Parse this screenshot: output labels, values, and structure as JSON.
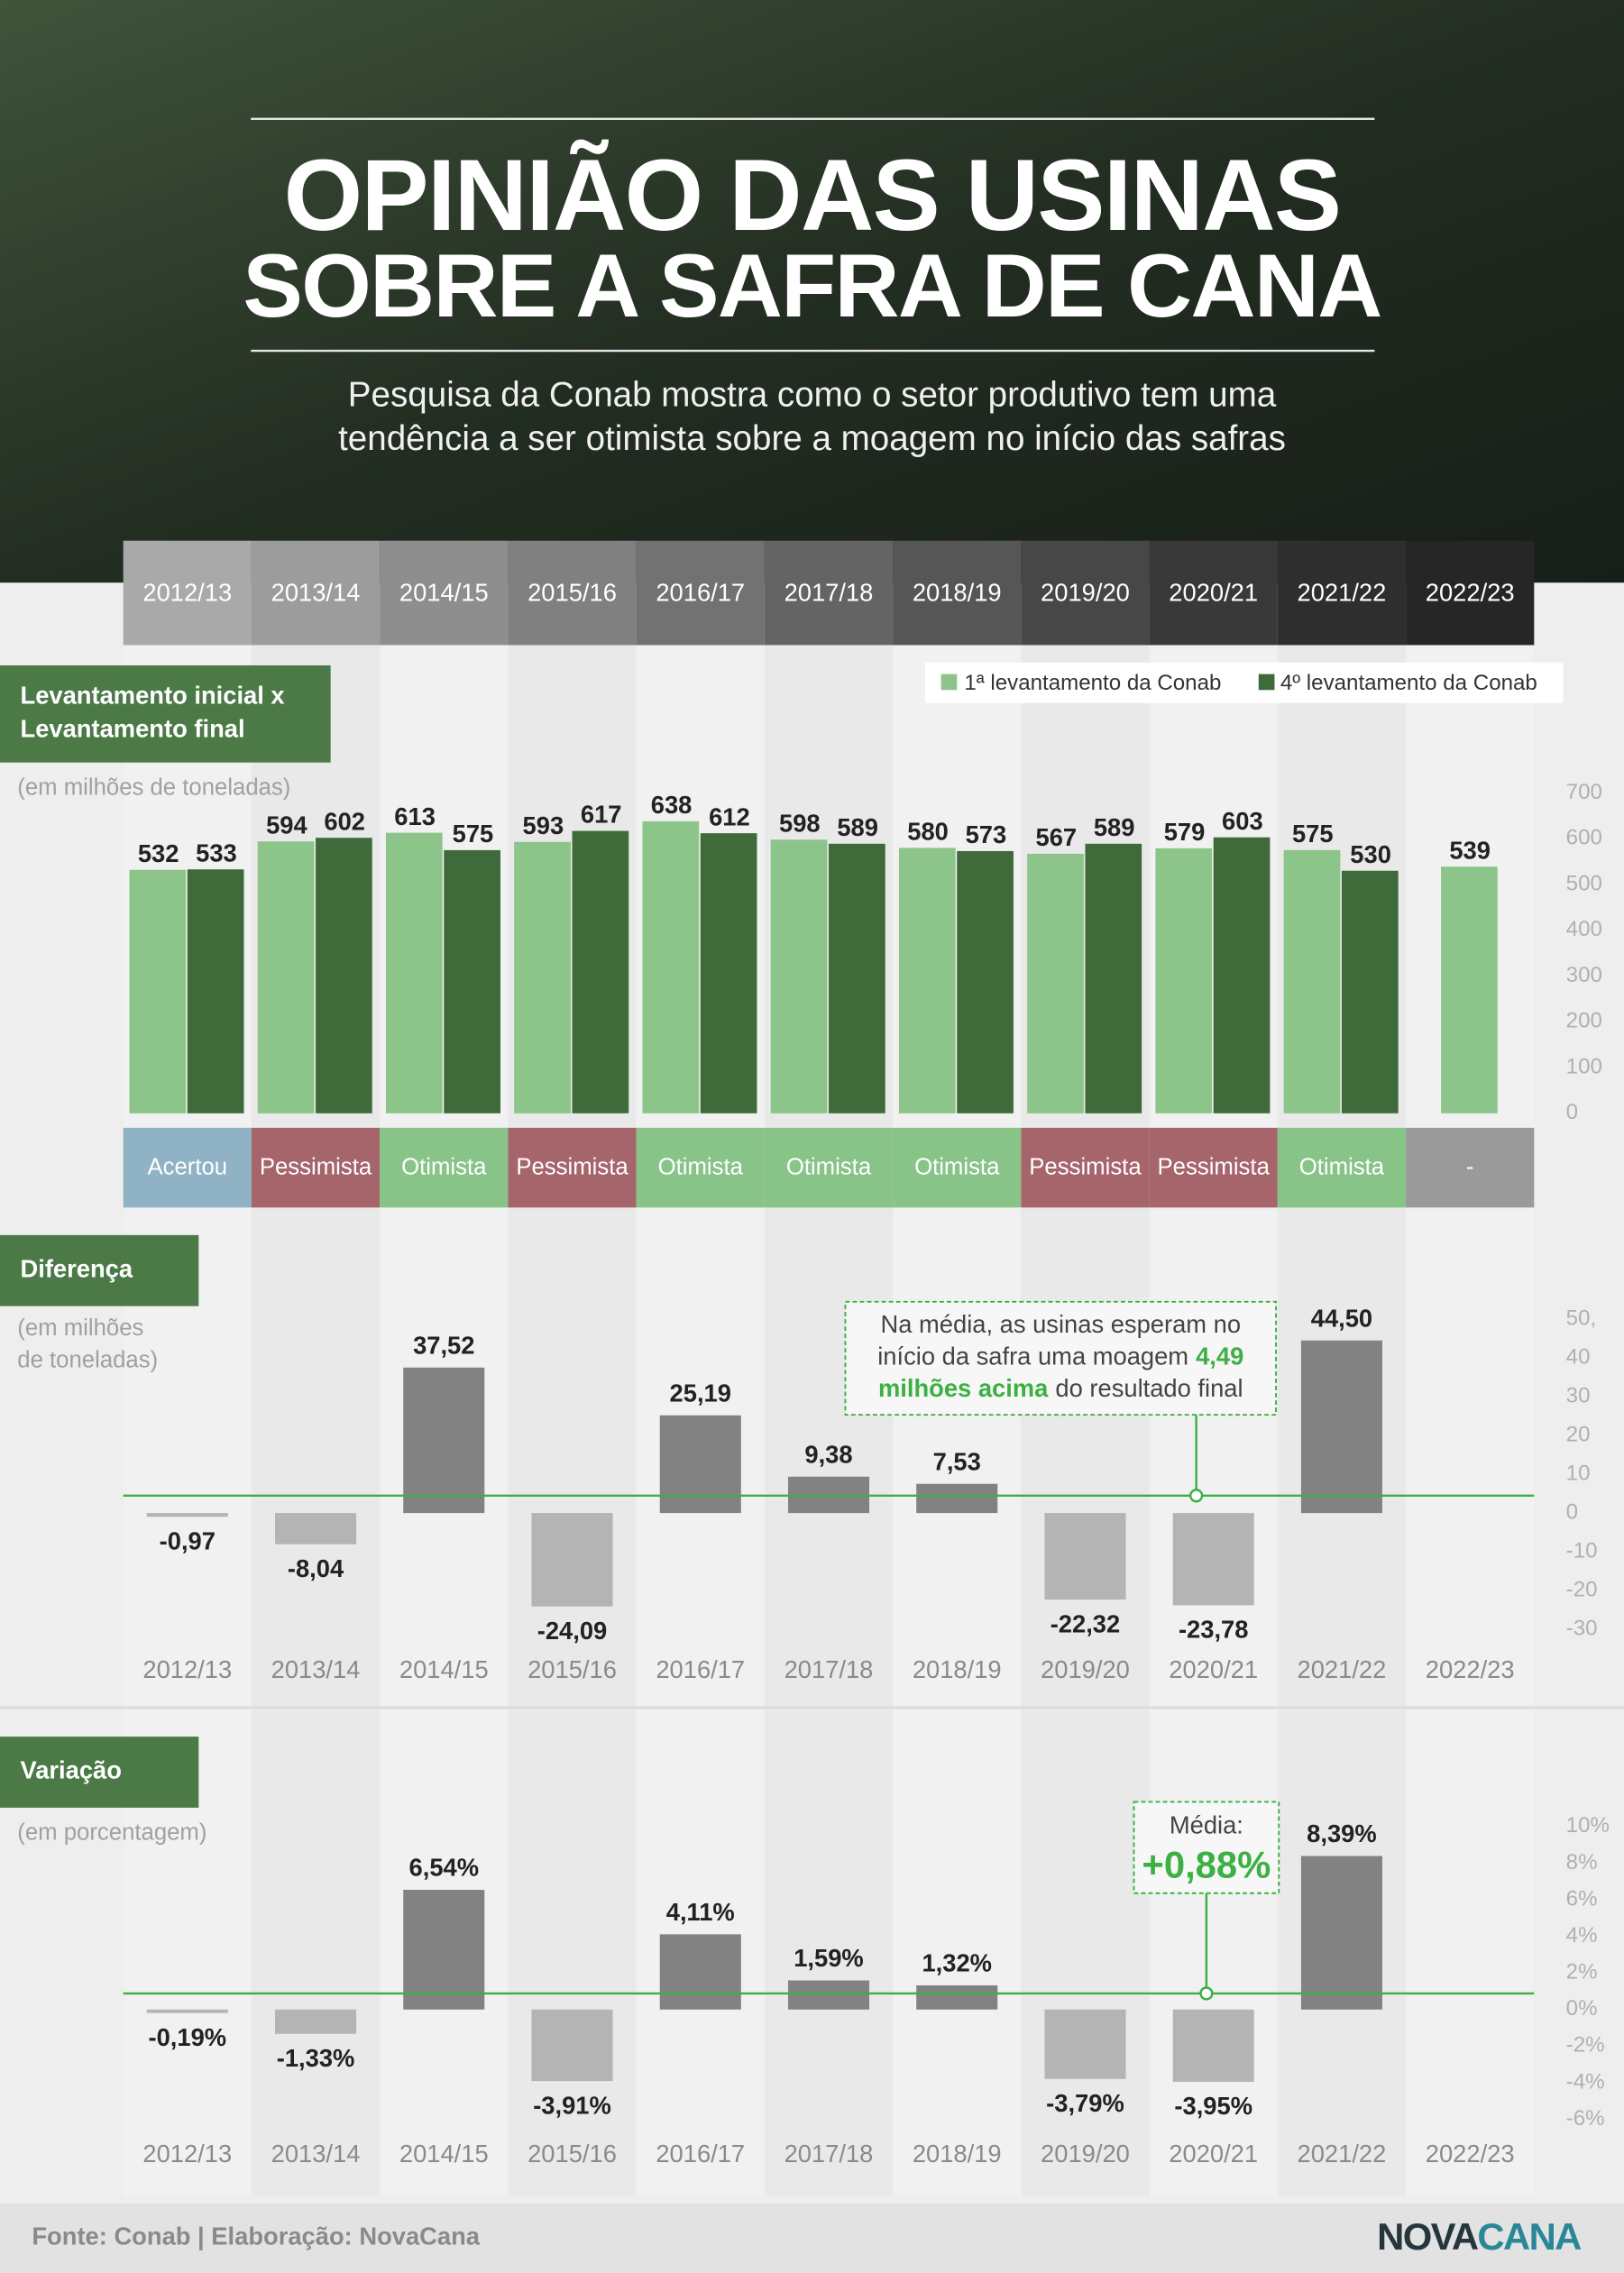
{
  "header": {
    "title_line1": "OPINIÃO DAS USINAS",
    "title_line2": "SOBRE A SAFRA DE CANA",
    "subtitle_line1": "Pesquisa da Conab mostra como o setor produtivo tem uma",
    "subtitle_line2": "tendência a ser otimista sobre a moagem no início das safras"
  },
  "chart_data": [
    {
      "type": "bar",
      "title": [
        "Levantamento inicial x",
        "Levantamento final"
      ],
      "subtitle": [
        "(em milhões de toneladas)"
      ],
      "categories": [
        "2012/13",
        "2013/14",
        "2014/15",
        "2015/16",
        "2016/17",
        "2017/18",
        "2018/19",
        "2019/20",
        "2020/21",
        "2021/22",
        "2022/23"
      ],
      "category_colors": [
        "#a9a9a9",
        "#9c9c9c",
        "#8e8e8e",
        "#808080",
        "#727272",
        "#646464",
        "#565656",
        "#474747",
        "#393939",
        "#2e2e2e",
        "#262626"
      ],
      "series": [
        {
          "name": "1ª levantamento da Conab",
          "color": "#8dc48a",
          "values": [
            532,
            594,
            613,
            593,
            638,
            598,
            580,
            567,
            579,
            575,
            539
          ]
        },
        {
          "name": "4º levantamento da Conab",
          "color": "#3f6b3b",
          "values": [
            533,
            602,
            575,
            617,
            612,
            589,
            573,
            589,
            603,
            530,
            null
          ]
        }
      ],
      "ylim": [
        0,
        700
      ],
      "yticks": [
        0,
        100,
        200,
        300,
        400,
        500,
        600,
        700
      ],
      "grid": false,
      "legend": "top-right",
      "verdicts": [
        "Acertou",
        "Pessimista",
        "Otimista",
        "Pessimista",
        "Otimista",
        "Otimista",
        "Otimista",
        "Pessimista",
        "Pessimista",
        "Otimista",
        "-"
      ],
      "verdict_colors": [
        "#8fb2c4",
        "#a6646b",
        "#88c488",
        "#a6646b",
        "#88c488",
        "#88c488",
        "#88c488",
        "#a6646b",
        "#a6646b",
        "#88c488",
        "#9a9a9a"
      ]
    },
    {
      "type": "bar",
      "title": [
        "Diferença"
      ],
      "subtitle": [
        "(em milhões",
        "de toneladas)"
      ],
      "categories": [
        "2012/13",
        "2013/14",
        "2014/15",
        "2015/16",
        "2016/17",
        "2017/18",
        "2018/19",
        "2019/20",
        "2020/21",
        "2021/22",
        "2022/23"
      ],
      "values": [
        -0.97,
        -8.04,
        37.52,
        -24.09,
        25.19,
        9.38,
        7.53,
        -22.32,
        -23.78,
        44.5,
        null
      ],
      "value_labels": [
        "-0,97",
        "-8,04",
        "37,52",
        "-24,09",
        "25,19",
        "9,38",
        "7,53",
        "-22,32",
        "-23,78",
        "44,50",
        null
      ],
      "positive_color": "#828282",
      "negative_color": "#b4b4b4",
      "ylim": [
        -30,
        50
      ],
      "yticks": [
        -30,
        -20,
        -10,
        0,
        10,
        20,
        30,
        40,
        {
          "value": 50,
          "label": "50,"
        }
      ],
      "grid": false,
      "average": 4.49,
      "average_color": "#3cb043",
      "annotation": [
        [
          {
            "text": "Na média, as usinas esperam no"
          }
        ],
        [
          {
            "text": "início da safra uma moagem"
          },
          {
            "text": "4,49",
            "bold": true
          }
        ],
        [
          {
            "text": "milhões acima",
            "bold": true
          },
          {
            "text": "do resultado final"
          }
        ]
      ]
    },
    {
      "type": "bar",
      "title": [
        "Variação"
      ],
      "subtitle": [
        "(em porcentagem)"
      ],
      "categories": [
        "2012/13",
        "2013/14",
        "2014/15",
        "2015/16",
        "2016/17",
        "2017/18",
        "2018/19",
        "2019/20",
        "2020/21",
        "2021/22",
        "2022/23"
      ],
      "values": [
        -0.19,
        -1.33,
        6.54,
        -3.91,
        4.11,
        1.59,
        1.32,
        -3.79,
        -3.95,
        8.39,
        null
      ],
      "value_labels": [
        "-0,19%",
        "-1,33%",
        "6,54%",
        "-3,91%",
        "4,11%",
        "1,59%",
        "1,32%",
        "-3,79%",
        "-3,95%",
        "8,39%",
        null
      ],
      "positive_color": "#828282",
      "negative_color": "#b4b4b4",
      "ylim": [
        -6,
        10
      ],
      "yticks": [
        {
          "value": -6,
          "label": "-6%"
        },
        {
          "value": -4,
          "label": "-4%"
        },
        {
          "value": -2,
          "label": "-2%"
        },
        {
          "value": 0,
          "label": "0%"
        },
        {
          "value": 2,
          "label": "2%"
        },
        {
          "value": 4,
          "label": "4%"
        },
        {
          "value": 6,
          "label": "6%"
        },
        {
          "value": 8,
          "label": "8%"
        },
        {
          "value": 10,
          "label": "10%"
        }
      ],
      "grid": false,
      "average": 0.88,
      "average_color": "#3cb043",
      "annotation": [
        [
          {
            "text": "Média:"
          }
        ],
        [
          {
            "text": "+0,88%",
            "bold": true
          }
        ]
      ]
    }
  ],
  "footer": {
    "source": "Fonte: Conab | Elaboração: NovaCana",
    "logo": [
      {
        "text": "NOVA",
        "color": "#25363c"
      },
      {
        "text": "CANA",
        "color": "#2a8797"
      }
    ]
  }
}
